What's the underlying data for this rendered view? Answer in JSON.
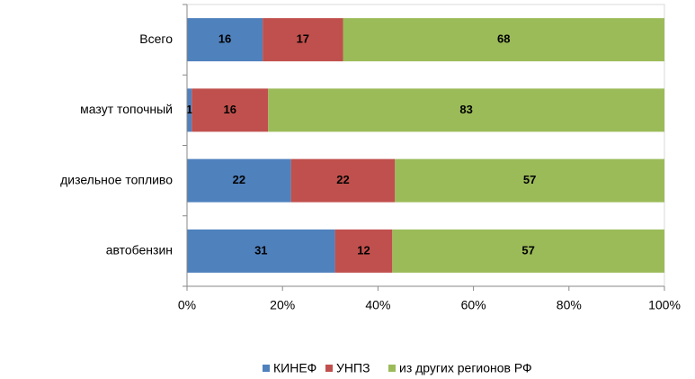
{
  "chart_data": {
    "type": "bar",
    "orientation": "horizontal",
    "stack": "percent",
    "categories": [
      "Всего",
      "мазут топочный",
      "дизельное топливо",
      "автобензин"
    ],
    "series": [
      {
        "name": "КИНЕФ",
        "color": "#4f81bd",
        "values": [
          16,
          1,
          22,
          31
        ]
      },
      {
        "name": "УНПЗ",
        "color": "#c0504d",
        "values": [
          17,
          16,
          22,
          12
        ]
      },
      {
        "name": "из других регионов РФ",
        "color": "#9bbb59",
        "values": [
          68,
          83,
          57,
          57
        ]
      }
    ],
    "xlim": [
      0,
      100
    ],
    "xticks": [
      {
        "value": 0,
        "label": "0%"
      },
      {
        "value": 20,
        "label": "20%"
      },
      {
        "value": 40,
        "label": "40%"
      },
      {
        "value": 60,
        "label": "60%"
      },
      {
        "value": 80,
        "label": "80%"
      },
      {
        "value": 100,
        "label": "100%"
      }
    ],
    "legend": "bottom"
  }
}
